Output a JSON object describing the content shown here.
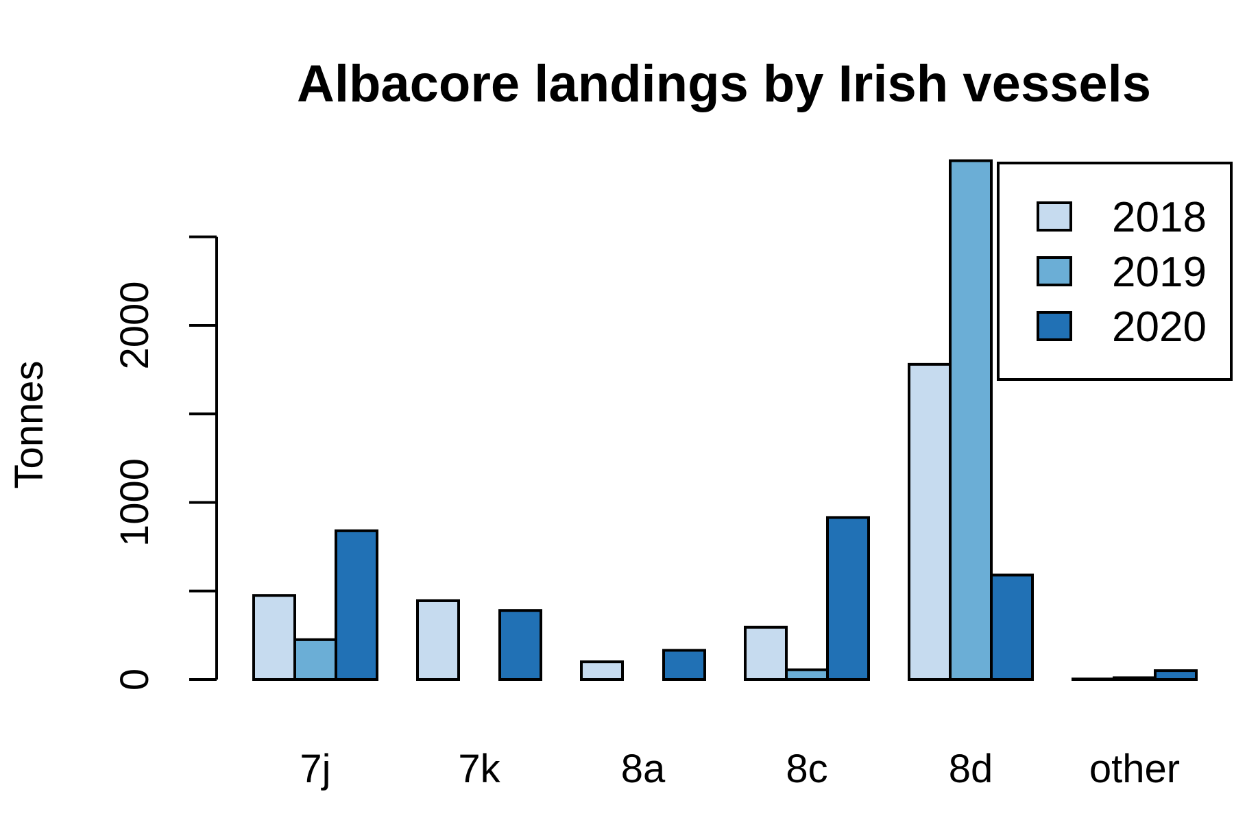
{
  "chart_data": {
    "type": "bar",
    "title": "Albacore landings by Irish vessels",
    "xlabel": "",
    "ylabel": "Tonnes",
    "categories": [
      "7j",
      "7k",
      "8a",
      "8c",
      "8d",
      "other"
    ],
    "series": [
      {
        "name": "2018",
        "color": "#c6dbef",
        "values": [
          475,
          445,
          100,
          295,
          1780,
          3
        ]
      },
      {
        "name": "2019",
        "color": "#6baed6",
        "values": [
          225,
          0,
          0,
          55,
          2930,
          10
        ]
      },
      {
        "name": "2020",
        "color": "#2171b5",
        "values": [
          840,
          390,
          165,
          915,
          590,
          50
        ]
      }
    ],
    "yticks": [
      0,
      1000,
      2000
    ],
    "ylim": [
      0,
      2500
    ],
    "grid": false,
    "legend_position": "top-right"
  }
}
